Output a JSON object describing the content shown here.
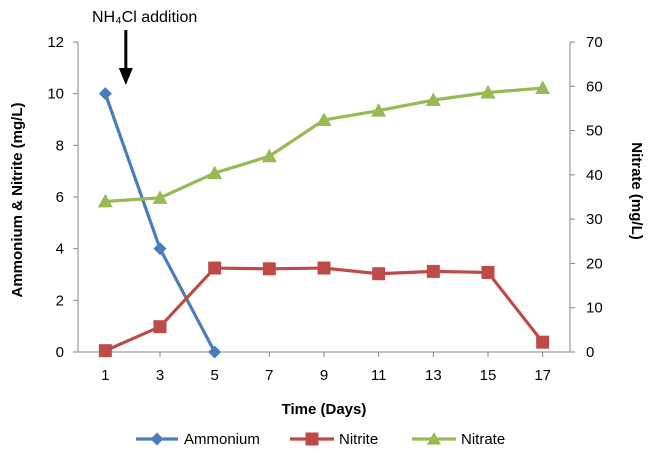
{
  "chart_data": {
    "type": "line",
    "title": "",
    "x": [
      1,
      3,
      5,
      7,
      9,
      11,
      13,
      15,
      17
    ],
    "xlabel": "Time (Days)",
    "xlim": [
      0,
      18
    ],
    "y_left": {
      "label": "Ammonium & Nitrite (mg/L)",
      "lim": [
        0,
        12
      ],
      "ticks": [
        0,
        2,
        4,
        6,
        8,
        10,
        12
      ]
    },
    "y_right": {
      "label": "Nitrate (mg/L)",
      "lim": [
        0,
        70
      ],
      "ticks": [
        0,
        10,
        20,
        30,
        40,
        50,
        60,
        70
      ]
    },
    "series": [
      {
        "name": "Ammonium",
        "axis": "left",
        "marker": "diamond",
        "color": "#4a7ebb",
        "x": [
          1,
          3,
          5
        ],
        "values": [
          10.0,
          4.0,
          0.0
        ]
      },
      {
        "name": "Nitrite",
        "axis": "left",
        "marker": "square",
        "color": "#be4b48",
        "x": [
          1,
          3,
          5,
          7,
          9,
          11,
          13,
          15,
          17
        ],
        "values": [
          0.05,
          0.98,
          3.25,
          3.22,
          3.25,
          3.03,
          3.12,
          3.08,
          0.38
        ]
      },
      {
        "name": "Nitrate",
        "axis": "right",
        "marker": "triangle",
        "color": "#98b954",
        "x": [
          1,
          3,
          5,
          7,
          9,
          11,
          13,
          15,
          17
        ],
        "values": [
          34.0,
          34.8,
          40.4,
          44.2,
          52.4,
          54.5,
          56.9,
          58.6,
          59.6
        ]
      }
    ],
    "annotation": {
      "text": "NH₄Cl addition",
      "x": 1.75
    },
    "grid": false,
    "legend": "bottom"
  }
}
